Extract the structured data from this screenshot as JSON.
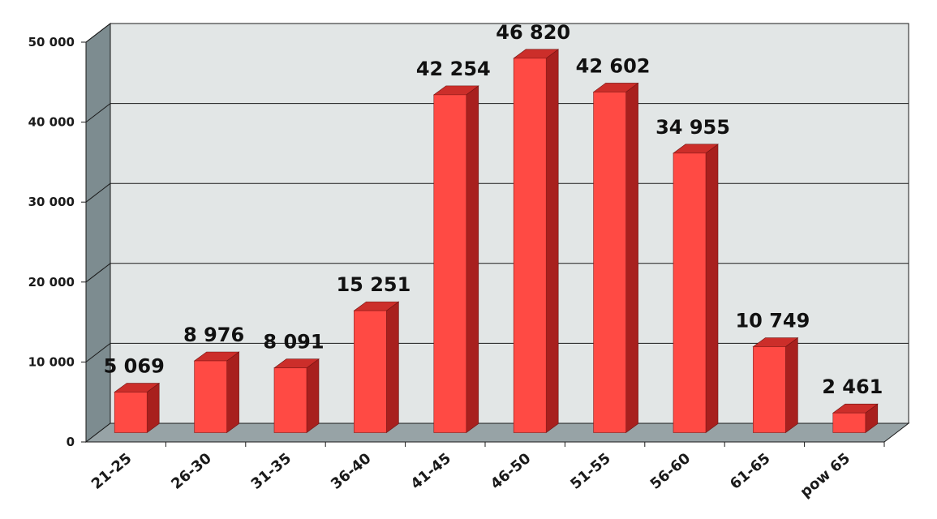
{
  "chart_data": {
    "type": "bar",
    "categories": [
      "21-25",
      "26-30",
      "31-35",
      "36-40",
      "41-45",
      "46-50",
      "51-55",
      "56-60",
      "61-65",
      "pow 65"
    ],
    "values": [
      5069,
      8976,
      8091,
      15251,
      42254,
      46820,
      42602,
      34955,
      10749,
      2461
    ],
    "data_labels": [
      "5 069",
      "8 976",
      "8 091",
      "15 251",
      "42 254",
      "46 820",
      "42 602",
      "34 955",
      "10 749",
      "2 461"
    ],
    "y_ticks": [
      0,
      10000,
      20000,
      30000,
      40000,
      50000
    ],
    "y_tick_labels": [
      "0",
      "10 000",
      "20 000",
      "30 000",
      "40 000",
      "50 000"
    ],
    "ylim": [
      0,
      50000
    ],
    "grid": true,
    "legend": "none",
    "colors": {
      "bar_front": "#ff4a44",
      "bar_side": "#a8201e",
      "bar_top": "#cc2e2a",
      "wall": "#e2e6e6",
      "left_wall": "#7d8c90",
      "floor": "#97a3a6",
      "gridline": "#1a1a1a"
    }
  }
}
